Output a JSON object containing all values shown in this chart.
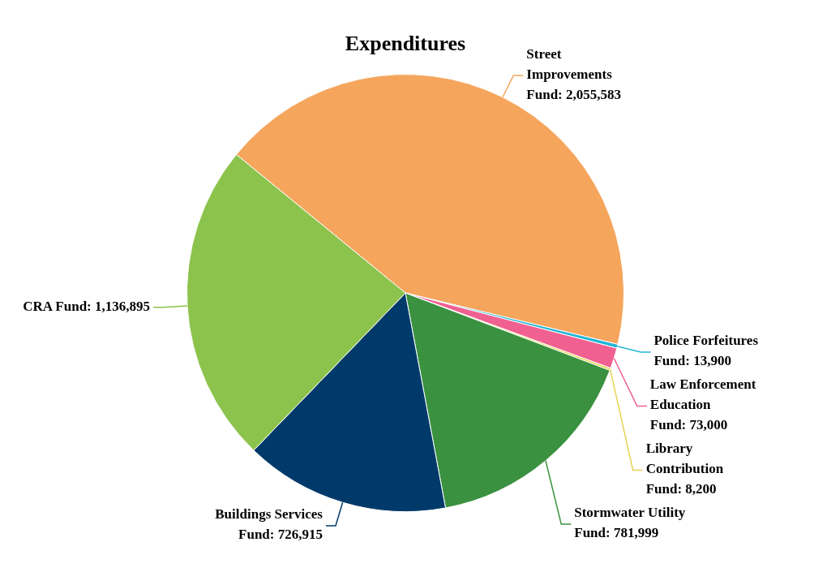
{
  "chart_data": {
    "type": "pie",
    "title": "Expenditures",
    "categories": [
      "Street Improvements Fund",
      "Police Forfeitures Fund",
      "Law Enforcement Education Fund",
      "Library Contribution Fund",
      "Stormwater Utility Fund",
      "Buildings Services Fund",
      "CRA Fund"
    ],
    "values": [
      2055583,
      13900,
      73000,
      8200,
      781999,
      726915,
      1136895
    ],
    "value_labels": [
      "2,055,583",
      "13,900",
      "73,000",
      "8,200",
      "781,999",
      "726,915",
      "1,136,895"
    ],
    "colors": [
      "#f5a55c",
      "#22b5d6",
      "#f06090",
      "#e6d450",
      "#3a9140",
      "#003a6b",
      "#8cc34c"
    ],
    "legend": false
  }
}
